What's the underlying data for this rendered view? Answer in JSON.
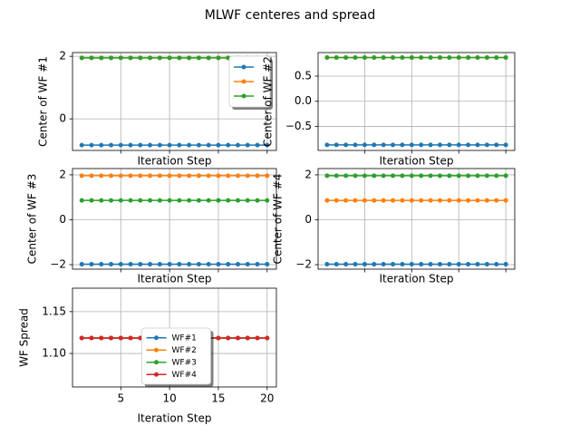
{
  "title": "MLWF centeres and spread",
  "chart_data": [
    {
      "type": "line",
      "xlabel": "Iteration Step",
      "ylabel": "Center of WF #1",
      "x": [
        1,
        2,
        3,
        4,
        5,
        6,
        7,
        8,
        9,
        10,
        11,
        12,
        13,
        14,
        15,
        16,
        17,
        18,
        19,
        20
      ],
      "xlim": [
        0.05,
        20.95
      ],
      "xticks": [
        5,
        10,
        15,
        20
      ],
      "ylim": [
        -1.01,
        2.12
      ],
      "yticks": [
        0,
        2
      ],
      "grid": true,
      "legend": "upper right",
      "series": [
        {
          "color": "#1f77b4",
          "values": [
            -0.84,
            -0.84,
            -0.84,
            -0.84,
            -0.84,
            -0.84,
            -0.84,
            -0.84,
            -0.84,
            -0.84,
            -0.84,
            -0.84,
            -0.84,
            -0.84,
            -0.84,
            -0.84,
            -0.84,
            -0.84,
            -0.84,
            -0.84
          ]
        },
        {
          "color": "#ff7f0e",
          "values": [
            1.95,
            1.95,
            1.95,
            1.95,
            1.95,
            1.95,
            1.95,
            1.95,
            1.95,
            1.95,
            1.95,
            1.95,
            1.95,
            1.95,
            1.95,
            1.95,
            1.95,
            1.95,
            1.95,
            1.95
          ]
        },
        {
          "color": "#2ca02c",
          "values": [
            1.95,
            1.95,
            1.95,
            1.95,
            1.95,
            1.95,
            1.95,
            1.95,
            1.95,
            1.95,
            1.95,
            1.95,
            1.95,
            1.95,
            1.95,
            1.95,
            1.95,
            1.95,
            1.95,
            1.95
          ]
        }
      ]
    },
    {
      "type": "line",
      "xlabel": "Iteration Step",
      "ylabel": "Center of WF #2",
      "x": [
        1,
        2,
        3,
        4,
        5,
        6,
        7,
        8,
        9,
        10,
        11,
        12,
        13,
        14,
        15,
        16,
        17,
        18,
        19,
        20
      ],
      "xlim": [
        0.05,
        20.95
      ],
      "xticks": [
        5,
        10,
        15,
        20
      ],
      "ylim": [
        -0.98,
        0.97
      ],
      "yticks": [
        {
          "value": -0.5,
          "label": "−0.5"
        },
        {
          "value": 0,
          "label": "0.0"
        },
        0.5
      ],
      "grid": true,
      "series": [
        {
          "color": "#1f77b4",
          "values": [
            -0.87,
            -0.87,
            -0.87,
            -0.87,
            -0.87,
            -0.87,
            -0.87,
            -0.87,
            -0.87,
            -0.87,
            -0.87,
            -0.87,
            -0.87,
            -0.87,
            -0.87,
            -0.87,
            -0.87,
            -0.87,
            -0.87,
            -0.87
          ]
        },
        {
          "color": "#ff7f0e",
          "values": [
            0.87,
            0.87,
            0.87,
            0.87,
            0.87,
            0.87,
            0.87,
            0.87,
            0.87,
            0.87,
            0.87,
            0.87,
            0.87,
            0.87,
            0.87,
            0.87,
            0.87,
            0.87,
            0.87,
            0.87
          ]
        },
        {
          "color": "#2ca02c",
          "values": [
            0.87,
            0.87,
            0.87,
            0.87,
            0.87,
            0.87,
            0.87,
            0.87,
            0.87,
            0.87,
            0.87,
            0.87,
            0.87,
            0.87,
            0.87,
            0.87,
            0.87,
            0.87,
            0.87,
            0.87
          ]
        }
      ]
    },
    {
      "type": "line",
      "xlabel": "Iteration Step",
      "ylabel": "Center of WF #3",
      "x": [
        1,
        2,
        3,
        4,
        5,
        6,
        7,
        8,
        9,
        10,
        11,
        12,
        13,
        14,
        15,
        16,
        17,
        18,
        19,
        20
      ],
      "xlim": [
        0.05,
        20.95
      ],
      "xticks": [
        5,
        10,
        15,
        20
      ],
      "ylim": [
        -2.2,
        2.28
      ],
      "yticks": [
        {
          "value": -2,
          "label": "−2"
        },
        0,
        2
      ],
      "grid": true,
      "series": [
        {
          "color": "#1f77b4",
          "values": [
            -1.98,
            -1.98,
            -1.98,
            -1.98,
            -1.98,
            -1.98,
            -1.98,
            -1.98,
            -1.98,
            -1.98,
            -1.98,
            -1.98,
            -1.98,
            -1.98,
            -1.98,
            -1.98,
            -1.98,
            -1.98,
            -1.98,
            -1.98
          ]
        },
        {
          "color": "#ff7f0e",
          "values": [
            1.96,
            1.96,
            1.96,
            1.96,
            1.96,
            1.96,
            1.96,
            1.96,
            1.96,
            1.96,
            1.96,
            1.96,
            1.96,
            1.96,
            1.96,
            1.96,
            1.96,
            1.96,
            1.96,
            1.96
          ]
        },
        {
          "color": "#2ca02c",
          "values": [
            0.86,
            0.86,
            0.86,
            0.86,
            0.86,
            0.86,
            0.86,
            0.86,
            0.86,
            0.86,
            0.86,
            0.86,
            0.86,
            0.86,
            0.86,
            0.86,
            0.86,
            0.86,
            0.86,
            0.86
          ]
        }
      ]
    },
    {
      "type": "line",
      "xlabel": "Iteration Step",
      "ylabel": "Center of WF #4",
      "x": [
        1,
        2,
        3,
        4,
        5,
        6,
        7,
        8,
        9,
        10,
        11,
        12,
        13,
        14,
        15,
        16,
        17,
        18,
        19,
        20
      ],
      "xlim": [
        0.05,
        20.95
      ],
      "xticks": [
        5,
        10,
        15,
        20
      ],
      "ylim": [
        -2.2,
        2.28
      ],
      "yticks": [
        {
          "value": -2,
          "label": "−2"
        },
        0,
        2
      ],
      "grid": true,
      "series": [
        {
          "color": "#1f77b4",
          "values": [
            -1.98,
            -1.98,
            -1.98,
            -1.98,
            -1.98,
            -1.98,
            -1.98,
            -1.98,
            -1.98,
            -1.98,
            -1.98,
            -1.98,
            -1.98,
            -1.98,
            -1.98,
            -1.98,
            -1.98,
            -1.98,
            -1.98,
            -1.98
          ]
        },
        {
          "color": "#ff7f0e",
          "values": [
            0.86,
            0.86,
            0.86,
            0.86,
            0.86,
            0.86,
            0.86,
            0.86,
            0.86,
            0.86,
            0.86,
            0.86,
            0.86,
            0.86,
            0.86,
            0.86,
            0.86,
            0.86,
            0.86,
            0.86
          ]
        },
        {
          "color": "#2ca02c",
          "values": [
            1.96,
            1.96,
            1.96,
            1.96,
            1.96,
            1.96,
            1.96,
            1.96,
            1.96,
            1.96,
            1.96,
            1.96,
            1.96,
            1.96,
            1.96,
            1.96,
            1.96,
            1.96,
            1.96,
            1.96
          ]
        }
      ]
    },
    {
      "type": "line",
      "xlabel": "Iteration Step",
      "ylabel": "WF Spread",
      "x": [
        1,
        2,
        3,
        4,
        5,
        6,
        7,
        8,
        9,
        10,
        11,
        12,
        13,
        14,
        15,
        16,
        17,
        18,
        19,
        20
      ],
      "xlim": [
        0.05,
        20.95
      ],
      "xticks": [
        5,
        10,
        15,
        20
      ],
      "ylim": [
        1.06,
        1.178
      ],
      "yticks": [
        {
          "value": 1.1,
          "label": "1.10"
        },
        1.15
      ],
      "grid": true,
      "legend": "lower center",
      "series": [
        {
          "name": "WF#1",
          "color": "#1f77b4",
          "values": [
            1.1185,
            1.1185,
            1.1185,
            1.1185,
            1.1185,
            1.1185,
            1.1185,
            1.1185,
            1.1185,
            1.1185,
            1.1185,
            1.1185,
            1.1185,
            1.1185,
            1.1185,
            1.1185,
            1.1185,
            1.1185,
            1.1185,
            1.1185
          ]
        },
        {
          "name": "WF#2",
          "color": "#ff7f0e",
          "values": [
            1.1185,
            1.1185,
            1.1185,
            1.1185,
            1.1185,
            1.1185,
            1.1185,
            1.1185,
            1.1185,
            1.1185,
            1.1185,
            1.1185,
            1.1185,
            1.1185,
            1.1185,
            1.1185,
            1.1185,
            1.1185,
            1.1185,
            1.1185
          ]
        },
        {
          "name": "WF#3",
          "color": "#2ca02c",
          "values": [
            1.1185,
            1.1185,
            1.1185,
            1.1185,
            1.1185,
            1.1185,
            1.1185,
            1.1185,
            1.1185,
            1.1185,
            1.1185,
            1.1185,
            1.1185,
            1.1185,
            1.1185,
            1.1185,
            1.1185,
            1.1185,
            1.1185,
            1.1185
          ]
        },
        {
          "name": "WF#4",
          "color": "#d62728",
          "values": [
            1.1185,
            1.1185,
            1.1185,
            1.1185,
            1.1185,
            1.1185,
            1.1185,
            1.1185,
            1.1185,
            1.1185,
            1.1185,
            1.1185,
            1.1185,
            1.1185,
            1.1185,
            1.1185,
            1.1185,
            1.1185,
            1.1185,
            1.1185
          ]
        }
      ]
    }
  ]
}
